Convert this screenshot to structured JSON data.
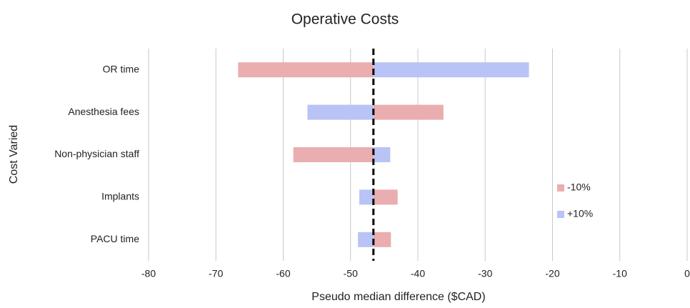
{
  "chart_data": {
    "type": "tornado",
    "title": "Operative Costs",
    "x_label": "Pseudo median difference ($CAD)",
    "y_label": "Cost Varied",
    "categories": [
      "OR time",
      "Anesthesia fees",
      "Non-physician staff",
      "Implants",
      "PACU time"
    ],
    "baseline": -46.6,
    "series": [
      {
        "name": "-10%",
        "color": "#eaaeb0",
        "values": [
          -66.7,
          -36.2,
          -58.5,
          -43.0,
          -44.0
        ]
      },
      {
        "name": "+10%",
        "color": "#b9c3f5",
        "values": [
          -23.5,
          -56.4,
          -44.1,
          -48.7,
          -48.9
        ]
      }
    ],
    "xlim": [
      -80,
      0
    ],
    "xticks": [
      -80,
      -70,
      -60,
      -50,
      -40,
      -30,
      -20,
      -10,
      0
    ],
    "grid": true,
    "legend": "right"
  }
}
